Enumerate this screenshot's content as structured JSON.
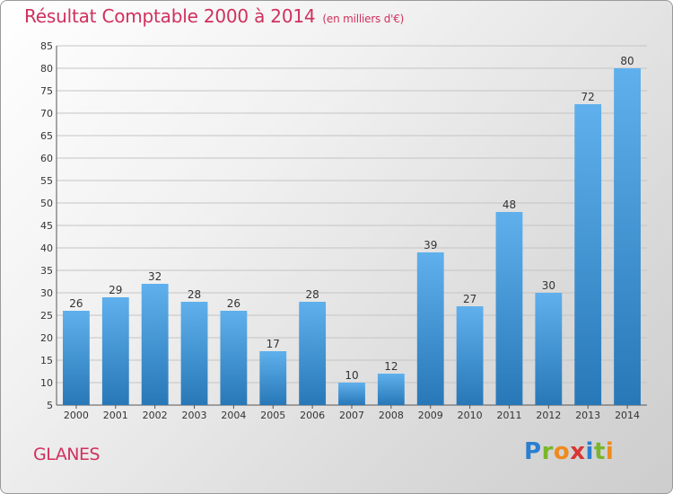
{
  "header": {
    "title": "Résultat Comptable 2000 à 2014",
    "subtitle": "(en milliers d'€)"
  },
  "footer": {
    "commune": "GLANES",
    "logo": {
      "letters": [
        "P",
        "r",
        "o",
        "x",
        "i",
        "t",
        "i"
      ],
      "colors": [
        "#2a7fd0",
        "#7ab52d",
        "#f08a1c",
        "#d93434",
        "#2a7fd0",
        "#7ab52d",
        "#f08a1c"
      ]
    }
  },
  "colors": {
    "bar_light": "#5fb0ec",
    "bar_dark": "#2878b8",
    "title": "#d0305c"
  },
  "chart_data": {
    "type": "bar",
    "title": "Résultat Comptable 2000 à 2014",
    "ylabel": "en milliers d'€",
    "xlabel": "",
    "categories": [
      "2000",
      "2001",
      "2002",
      "2003",
      "2004",
      "2005",
      "2006",
      "2007",
      "2008",
      "2009",
      "2010",
      "2011",
      "2012",
      "2013",
      "2014"
    ],
    "values": [
      26,
      29,
      32,
      28,
      26,
      17,
      28,
      10,
      12,
      39,
      27,
      48,
      30,
      72,
      80
    ],
    "ylim": [
      5,
      85
    ],
    "yticks": [
      5,
      10,
      15,
      20,
      25,
      30,
      35,
      40,
      45,
      50,
      55,
      60,
      65,
      70,
      75,
      80,
      85
    ],
    "grid": true
  }
}
